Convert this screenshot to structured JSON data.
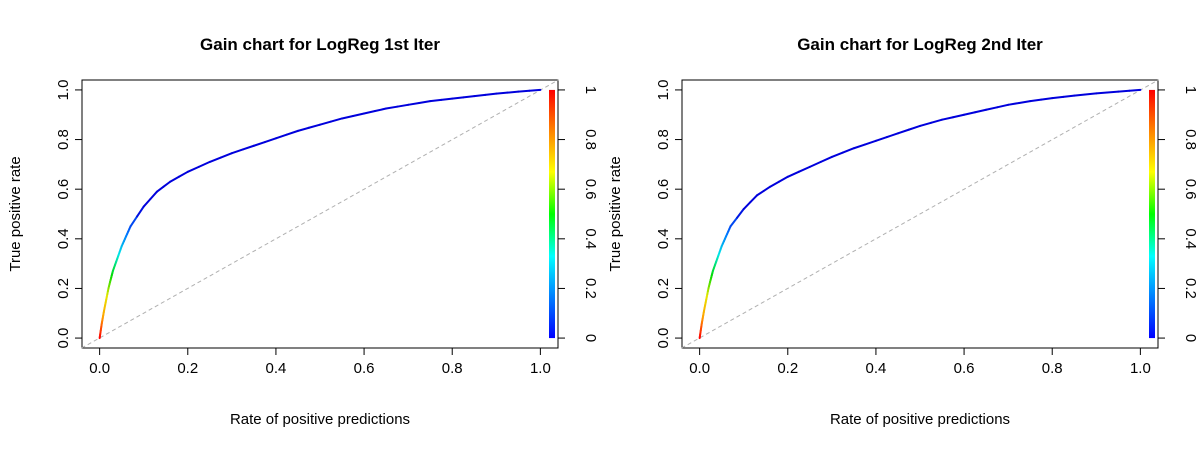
{
  "chart_data": [
    {
      "type": "line",
      "title": "Gain chart for LogReg 1st Iter",
      "xlabel": "Rate of positive predictions",
      "ylabel": "True positive rate",
      "xlim": [
        0,
        1
      ],
      "ylim": [
        0,
        1
      ],
      "xticks": [
        "0.0",
        "0.2",
        "0.4",
        "0.6",
        "0.8",
        "1.0"
      ],
      "yticks": [
        "0.0",
        "0.2",
        "0.4",
        "0.6",
        "0.8",
        "1.0"
      ],
      "colorbar_ticks": [
        "0",
        "0.2",
        "0.4",
        "0.6",
        "0.8",
        "1"
      ],
      "grid": false,
      "series": [
        {
          "x": [
            0,
            0.005,
            0.01,
            0.02,
            0.03,
            0.05,
            0.07,
            0.1,
            0.13,
            0.16,
            0.2,
            0.25,
            0.3,
            0.35,
            0.4,
            0.45,
            0.5,
            0.55,
            0.6,
            0.65,
            0.7,
            0.75,
            0.8,
            0.85,
            0.9,
            0.95,
            1.0
          ],
          "y": [
            0,
            0.06,
            0.11,
            0.2,
            0.27,
            0.37,
            0.45,
            0.53,
            0.59,
            0.63,
            0.67,
            0.71,
            0.745,
            0.775,
            0.805,
            0.835,
            0.86,
            0.885,
            0.905,
            0.925,
            0.94,
            0.955,
            0.965,
            0.975,
            0.985,
            0.993,
            1.0
          ]
        }
      ],
      "reference_line": {
        "x": [
          0,
          1
        ],
        "y": [
          0,
          1
        ]
      }
    },
    {
      "type": "line",
      "title": "Gain chart for LogReg 2nd Iter",
      "xlabel": "Rate of positive predictions",
      "ylabel": "True positive rate",
      "xlim": [
        0,
        1
      ],
      "ylim": [
        0,
        1
      ],
      "xticks": [
        "0.0",
        "0.2",
        "0.4",
        "0.6",
        "0.8",
        "1.0"
      ],
      "yticks": [
        "0.0",
        "0.2",
        "0.4",
        "0.6",
        "0.8",
        "1.0"
      ],
      "colorbar_ticks": [
        "0",
        "0.2",
        "0.4",
        "0.6",
        "0.8",
        "1"
      ],
      "grid": false,
      "series": [
        {
          "x": [
            0,
            0.005,
            0.01,
            0.02,
            0.03,
            0.05,
            0.07,
            0.1,
            0.13,
            0.16,
            0.2,
            0.25,
            0.3,
            0.35,
            0.4,
            0.45,
            0.5,
            0.55,
            0.6,
            0.65,
            0.7,
            0.75,
            0.8,
            0.85,
            0.9,
            0.95,
            1.0
          ],
          "y": [
            0,
            0.06,
            0.11,
            0.2,
            0.27,
            0.37,
            0.45,
            0.52,
            0.575,
            0.61,
            0.65,
            0.69,
            0.73,
            0.765,
            0.795,
            0.825,
            0.855,
            0.88,
            0.9,
            0.92,
            0.94,
            0.955,
            0.967,
            0.977,
            0.986,
            0.993,
            1.0
          ]
        }
      ],
      "reference_line": {
        "x": [
          0,
          1
        ],
        "y": [
          0,
          1
        ]
      }
    }
  ]
}
